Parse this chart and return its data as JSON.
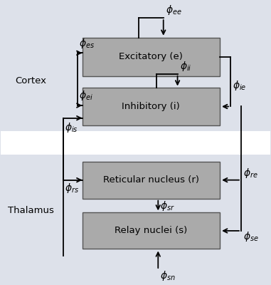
{
  "fig_width": 3.81,
  "fig_height": 4.0,
  "dpi": 100,
  "bg_color": "#dde1ea",
  "white_band_color": "#ffffff",
  "box_color": "#aaaaaa",
  "box_edge": "#555555",
  "cortex_label": "Cortex",
  "thalamus_label": "Thalamus",
  "excitatory_label": "Excitatory (e)",
  "inhibitory_label": "Inhibitory (i)",
  "reticular_label": "Reticular nucleus (r)",
  "relay_label": "Relay nuclei (s)",
  "phi_size": 10,
  "label_size": 9.5,
  "lw": 1.3
}
